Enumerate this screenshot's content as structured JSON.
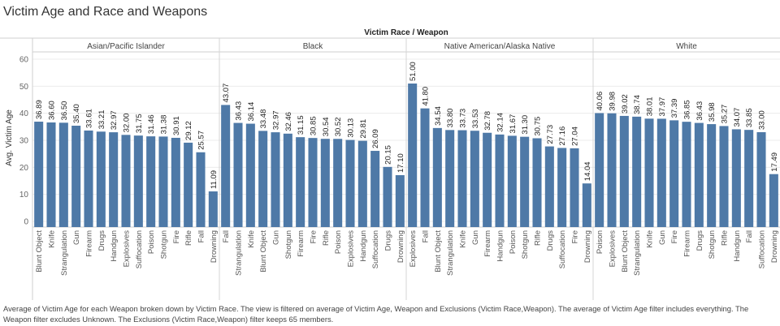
{
  "title": "Victim Age and Race and Weapons",
  "caption": "Average of Victim Age for each Weapon broken down by Victim Race. The view is filtered on average of Victim Age, Weapon and Exclusions (Victim Race,Weapon). The average of Victim Age filter includes everything. The Weapon filter excludes Unknown. The Exclusions (Victim Race,Weapon) filter keeps 65 members.",
  "chart_data": {
    "type": "bar",
    "header": "Victim Race  /  Weapon",
    "ylabel": "Avg. Victim Age",
    "ylim": [
      0,
      60
    ],
    "yticks": [
      0,
      10,
      20,
      30,
      40,
      50,
      60
    ],
    "grid": true,
    "groups": [
      {
        "name": "Asian/Pacific Islander",
        "categories": [
          "Blunt Object",
          "Knife",
          "Strangulation",
          "Gun",
          "Firearm",
          "Drugs",
          "Handgun",
          "Explosives",
          "Suffocation",
          "Poison",
          "Shotgun",
          "Fire",
          "Rifle",
          "Fall",
          "Drowning"
        ],
        "values": [
          36.89,
          36.6,
          36.5,
          35.4,
          33.61,
          33.21,
          32.97,
          32.0,
          31.75,
          31.46,
          31.38,
          30.91,
          29.12,
          25.57,
          11.09
        ],
        "labels": [
          "36.89",
          "36.60",
          "36.50",
          "35.40",
          "33.61",
          "33.21",
          "32.97",
          "32.00",
          "31.75",
          "31.46",
          "31.38",
          "30.91",
          "29.12",
          "25.57",
          "11.09"
        ]
      },
      {
        "name": "Black",
        "categories": [
          "Fall",
          "Strangulation",
          "Knife",
          "Blunt Object",
          "Gun",
          "Shotgun",
          "Firearm",
          "Fire",
          "Rifle",
          "Poison",
          "Explosives",
          "Handgun",
          "Suffocation",
          "Drugs",
          "Drowning"
        ],
        "values": [
          43.07,
          36.43,
          36.14,
          33.48,
          32.97,
          32.46,
          31.15,
          30.85,
          30.54,
          30.52,
          30.13,
          29.81,
          26.09,
          20.15,
          17.1
        ],
        "labels": [
          "43.07",
          "36.43",
          "36.14",
          "33.48",
          "32.97",
          "32.46",
          "31.15",
          "30.85",
          "30.54",
          "30.52",
          "30.13",
          "29.81",
          "26.09",
          "20.15",
          "17.10"
        ]
      },
      {
        "name": "Native American/Alaska Native",
        "categories": [
          "Explosives",
          "Fall",
          "Blunt Object",
          "Strangulation",
          "Knife",
          "Gun",
          "Firearm",
          "Handgun",
          "Poison",
          "Shotgun",
          "Rifle",
          "Drugs",
          "Suffocation",
          "Fire",
          "Drowning"
        ],
        "values": [
          51.0,
          41.8,
          34.54,
          33.8,
          33.73,
          33.53,
          32.78,
          32.14,
          31.67,
          31.3,
          30.75,
          27.73,
          27.16,
          27.04,
          14.04
        ],
        "labels": [
          "51.00",
          "41.80",
          "34.54",
          "33.80",
          "33.73",
          "33.53",
          "32.78",
          "32.14",
          "31.67",
          "31.30",
          "30.75",
          "27.73",
          "27.16",
          "27.04",
          "14.04"
        ]
      },
      {
        "name": "White",
        "categories": [
          "Poison",
          "Explosives",
          "Blunt Object",
          "Strangulation",
          "Knife",
          "Gun",
          "Fire",
          "Firearm",
          "Drugs",
          "Shotgun",
          "Rifle",
          "Handgun",
          "Fall",
          "Suffocation",
          "Drowning"
        ],
        "values": [
          40.06,
          39.98,
          39.02,
          38.74,
          38.01,
          37.97,
          37.39,
          36.85,
          36.43,
          35.98,
          35.27,
          34.07,
          33.85,
          33.0,
          17.49
        ],
        "labels": [
          "40.06",
          "39.98",
          "39.02",
          "38.74",
          "38.01",
          "37.97",
          "37.39",
          "36.85",
          "36.43",
          "35.98",
          "35.27",
          "34.07",
          "33.85",
          "33.00",
          "17.49"
        ]
      }
    ],
    "colors": {
      "bar": "#4e79a7"
    }
  }
}
